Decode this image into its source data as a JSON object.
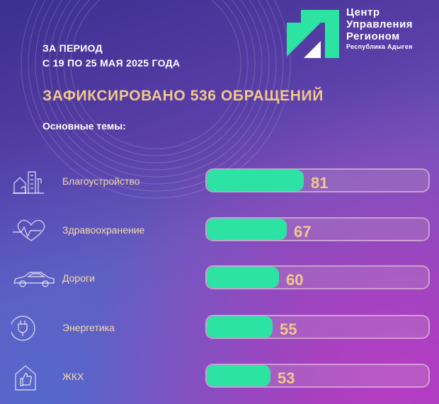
{
  "header": {
    "period_line1": "ЗА ПЕРИОД",
    "period_line2": "С 19 ПО 25 МАЯ 2025 ГОДА",
    "headline": "ЗАФИКСИРОВАНО 536 ОБРАЩЕНИЙ",
    "topics_label": "Основные темы:"
  },
  "logo": {
    "line1": "Центр",
    "line2": "Управления",
    "line3": "Регионом",
    "line4": "Республика Адыгея",
    "icon": "cur-logo-icon"
  },
  "colors": {
    "bar_fill": "#2de3a4",
    "value_text": "#f3c88a",
    "headline_text": "#f3c88a"
  },
  "chart_data": {
    "type": "bar",
    "orientation": "horizontal",
    "categories": [
      "Благоустройство",
      "Здравоохранение",
      "Дороги",
      "Энергетика",
      "ЖКХ"
    ],
    "values": [
      81,
      67,
      60,
      55,
      53
    ],
    "icons": [
      "city-building-icon",
      "heart-pulse-icon",
      "car-icon",
      "power-plug-icon",
      "house-like-icon"
    ],
    "xlim": [
      0,
      185
    ]
  }
}
